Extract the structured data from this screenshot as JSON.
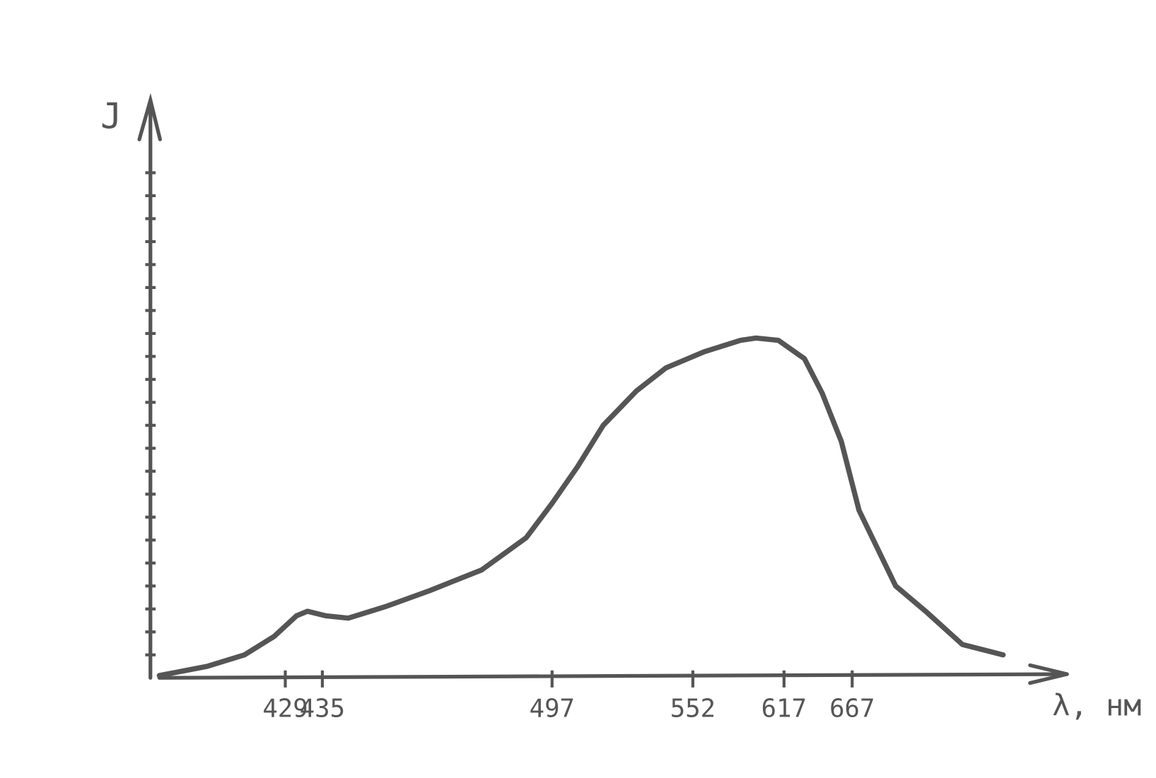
{
  "chart_data": {
    "type": "line",
    "y_label": "J",
    "x_label": "λ, нм",
    "x": [
      400,
      411,
      419.6,
      426.4,
      430.8,
      432.6,
      436,
      442,
      452,
      464,
      478,
      490,
      497,
      507,
      517,
      530,
      541.5,
      560,
      586,
      597,
      613,
      632,
      645,
      659,
      672,
      699,
      721,
      748,
      778
    ],
    "values": [
      0.1,
      0.5,
      1.0,
      1.8,
      2.7,
      2.9,
      2.7,
      2.6,
      3.1,
      3.8,
      4.7,
      6.1,
      7.6,
      9.2,
      11,
      12.5,
      13.5,
      14.2,
      14.7,
      14.8,
      14.7,
      13.9,
      12.4,
      10.3,
      7.3,
      4.0,
      2.9,
      1.45,
      1.0
    ],
    "color": "#555555",
    "xlim": [
      400,
      825
    ],
    "xticks": [
      429,
      435,
      497,
      552,
      617,
      667
    ],
    "ylim": [
      0,
      25
    ],
    "yticks": [
      1,
      2,
      3,
      4,
      5,
      6,
      7,
      8,
      9,
      10,
      11,
      12,
      13,
      14,
      15,
      16,
      17,
      18,
      19,
      20,
      21,
      22
    ]
  }
}
